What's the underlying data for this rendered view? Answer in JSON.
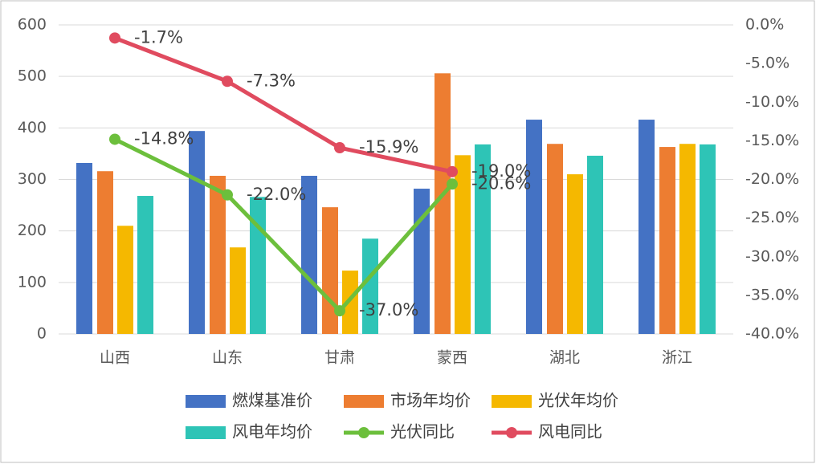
{
  "chart_data": {
    "type": "bar",
    "categories": [
      "山西",
      "山东",
      "甘肃",
      "蒙西",
      "湖北",
      "浙江"
    ],
    "series": [
      {
        "name": "燃煤基准价",
        "color": "#4472c4",
        "values": [
          332,
          394,
          307,
          282,
          416,
          416
        ]
      },
      {
        "name": "市场年均价",
        "color": "#ed7d31",
        "values": [
          316,
          307,
          246,
          506,
          369,
          363
        ]
      },
      {
        "name": "光伏年均价",
        "color": "#f5b800",
        "values": [
          210,
          168,
          123,
          347,
          310,
          369
        ]
      },
      {
        "name": "风电年均价",
        "color": "#2ec4b6",
        "values": [
          268,
          266,
          185,
          368,
          346,
          368
        ]
      },
      {
        "name": "光伏同比",
        "type": "line",
        "axis": "y2",
        "color": "#6cbf3c",
        "values": [
          -14.8,
          -22.0,
          -37.0,
          -20.6,
          null,
          null
        ],
        "value_labels": [
          "-14.8%",
          "-22.0%",
          "-37.0%",
          "-20.6%",
          null,
          null
        ]
      },
      {
        "name": "风电同比",
        "type": "line",
        "axis": "y2",
        "color": "#e04b5f",
        "values": [
          -1.7,
          -7.3,
          -15.9,
          -19.0,
          null,
          null
        ],
        "value_labels": [
          "-1.7%",
          "-7.3%",
          "-15.9%",
          "-19.0%",
          null,
          null
        ]
      }
    ],
    "ylim": [
      0,
      600
    ],
    "yticks": [
      0,
      100,
      200,
      300,
      400,
      500,
      600
    ],
    "y2lim": [
      -40,
      0
    ],
    "y2ticks": [
      {
        "value": 0,
        "label": "0.0%"
      },
      {
        "value": -5,
        "label": "-5.0%"
      },
      {
        "value": -10,
        "label": "-10.0%"
      },
      {
        "value": -15,
        "label": "-15.0%"
      },
      {
        "value": -20,
        "label": "-20.0%"
      },
      {
        "value": -25,
        "label": "-25.0%"
      },
      {
        "value": -30,
        "label": "-30.0%"
      },
      {
        "value": -35,
        "label": "-35.0%"
      },
      {
        "value": -40,
        "label": "-40.0%"
      }
    ],
    "grid": true,
    "legend": "bottom"
  }
}
